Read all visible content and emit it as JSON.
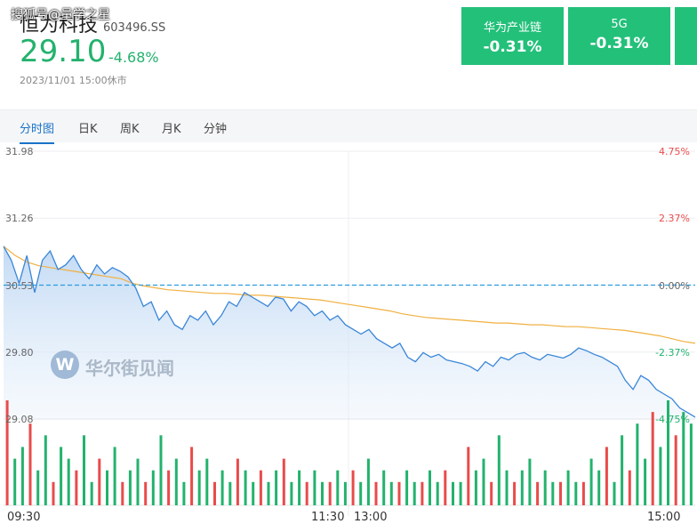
{
  "header": {
    "name": "恒为科技",
    "code": "603496.SS",
    "overlay_text": "搜狐号@量学之星",
    "price": "29.10",
    "change_pct": "-4.68%",
    "datetime": "2023/11/01 15:00休市"
  },
  "sector_cards": [
    {
      "name": "华为产业链",
      "value": "-0.31%"
    },
    {
      "name": "5G",
      "value": "-0.31%"
    }
  ],
  "tabs": [
    {
      "label": "分时图"
    },
    {
      "label": "日K"
    },
    {
      "label": "周K"
    },
    {
      "label": "月K"
    },
    {
      "label": "分钟"
    }
  ],
  "watermark": "华尔街见闻",
  "colors": {
    "up": "#e94b4b",
    "down": "#23b26d",
    "price_line": "#3a86d8",
    "avg_line": "#f0b040",
    "accent": "#1a73c9"
  },
  "chart_data": {
    "type": "line",
    "y_left_ticks": [
      "31.98",
      "31.26",
      "30.53",
      "29.80",
      "29.08"
    ],
    "y_right_ticks": [
      "4.75%",
      "2.37%",
      "0.00%",
      "-2.37%",
      "-4.75%"
    ],
    "x_ticks": [
      "09:30",
      "11:30",
      "13:00",
      "15:00"
    ],
    "prev_close": 30.53,
    "ylim": [
      29.08,
      31.98
    ],
    "series": [
      {
        "values": [
          30.95,
          30.8,
          30.55,
          30.85,
          30.45,
          30.8,
          30.9,
          30.7,
          30.75,
          30.85,
          30.7,
          30.6,
          30.75,
          30.65,
          30.72,
          30.68,
          30.62,
          30.5,
          30.3,
          30.35,
          30.15,
          30.25,
          30.1,
          30.05,
          30.2,
          30.15,
          30.25,
          30.1,
          30.2,
          30.35,
          30.3,
          30.45,
          30.4,
          30.35,
          30.3,
          30.4,
          30.38,
          30.25,
          30.35,
          30.3,
          30.2,
          30.25,
          30.15,
          30.2,
          30.1,
          30.05,
          30.0,
          30.05,
          29.95,
          29.9,
          29.85,
          29.9,
          29.75,
          29.7,
          29.8,
          29.75,
          29.78,
          29.72,
          29.7,
          29.68,
          29.65,
          29.6,
          29.7,
          29.65,
          29.75,
          29.72,
          29.78,
          29.8,
          29.75,
          29.72,
          29.78,
          29.76,
          29.74,
          29.78,
          29.85,
          29.82,
          29.78,
          29.75,
          29.7,
          29.65,
          29.5,
          29.4,
          29.55,
          29.5,
          29.4,
          29.35,
          29.3,
          29.2,
          29.15,
          29.1
        ]
      },
      {
        "values": [
          30.95,
          30.85,
          30.78,
          30.74,
          30.72,
          30.7,
          30.68,
          30.66,
          30.64,
          30.62,
          30.6,
          30.55,
          30.52,
          30.5,
          30.48,
          30.47,
          30.46,
          30.45,
          30.44,
          30.44,
          30.43,
          30.42,
          30.42,
          30.41,
          30.4,
          30.39,
          30.38,
          30.37,
          30.35,
          30.33,
          30.31,
          30.29,
          30.27,
          30.25,
          30.22,
          30.2,
          30.18,
          30.17,
          30.16,
          30.15,
          30.14,
          30.13,
          30.12,
          30.12,
          30.11,
          30.1,
          30.1,
          30.09,
          30.08,
          30.08,
          30.07,
          30.06,
          30.05,
          30.04,
          30.02,
          30.0,
          29.98,
          29.95,
          29.92,
          29.9
        ]
      }
    ],
    "volume": {
      "values": [
        9,
        4,
        5,
        7,
        3,
        6,
        2,
        5,
        4,
        3,
        6,
        2,
        4,
        3,
        5,
        2,
        3,
        4,
        2,
        3,
        6,
        3,
        4,
        2,
        5,
        3,
        4,
        2,
        3,
        2,
        4,
        3,
        2,
        3,
        2,
        3,
        4,
        2,
        3,
        2,
        3,
        2,
        2,
        3,
        2,
        3,
        2,
        4,
        2,
        3,
        2,
        2,
        3,
        2,
        2,
        3,
        2,
        3,
        2,
        2,
        5,
        3,
        4,
        2,
        6,
        3,
        2,
        3,
        4,
        2,
        3,
        2,
        2,
        3,
        2,
        2,
        4,
        3,
        5,
        2,
        6,
        3,
        7,
        4,
        8,
        5,
        9,
        6,
        8,
        7
      ]
    }
  }
}
